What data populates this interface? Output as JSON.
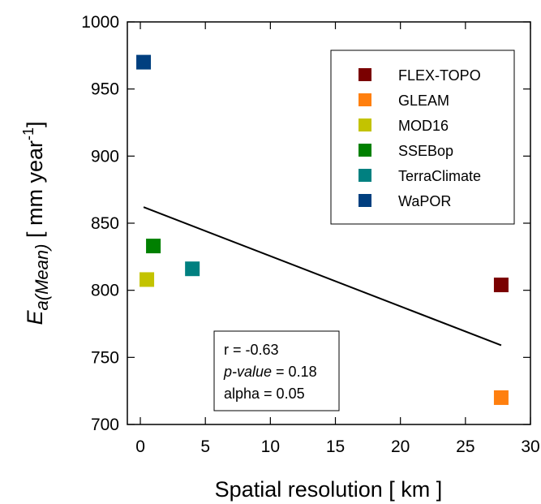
{
  "chart_data": {
    "type": "scatter",
    "xlabel": "Spatial resolution [ km ]",
    "ylabel": {
      "main": "E",
      "sub": "a(Mean)",
      "unit_prefix": " [ mm year",
      "unit_exp": "-1",
      "unit_suffix": "]"
    },
    "xlim": [
      -1,
      30
    ],
    "ylim": [
      700,
      1000
    ],
    "xticks": [
      0,
      5,
      10,
      15,
      20,
      25,
      30
    ],
    "yticks": [
      700,
      750,
      800,
      850,
      900,
      950,
      1000
    ],
    "grid": false,
    "legend_position": "top-right",
    "series": [
      {
        "name": "FLEX-TOPO",
        "color": "#7a0000",
        "x": 27.75,
        "y": 804
      },
      {
        "name": "GLEAM",
        "color": "#ff7f0e",
        "x": 27.75,
        "y": 720
      },
      {
        "name": "MOD16",
        "color": "#c3c300",
        "x": 0.5,
        "y": 808
      },
      {
        "name": "SSEBop",
        "color": "#008000",
        "x": 1.0,
        "y": 833
      },
      {
        "name": "TerraClimate",
        "color": "#008080",
        "x": 4.0,
        "y": 816
      },
      {
        "name": "WaPOR",
        "color": "#003f7f",
        "x": 0.25,
        "y": 970
      }
    ],
    "trendline": {
      "x": [
        0.25,
        27.75
      ],
      "y": [
        862,
        759
      ]
    },
    "stats": {
      "r_label": "r = -0.63",
      "p_label": "p-value",
      "p_value_text": " = 0.18",
      "alpha_label": "alpha = 0.05"
    }
  }
}
